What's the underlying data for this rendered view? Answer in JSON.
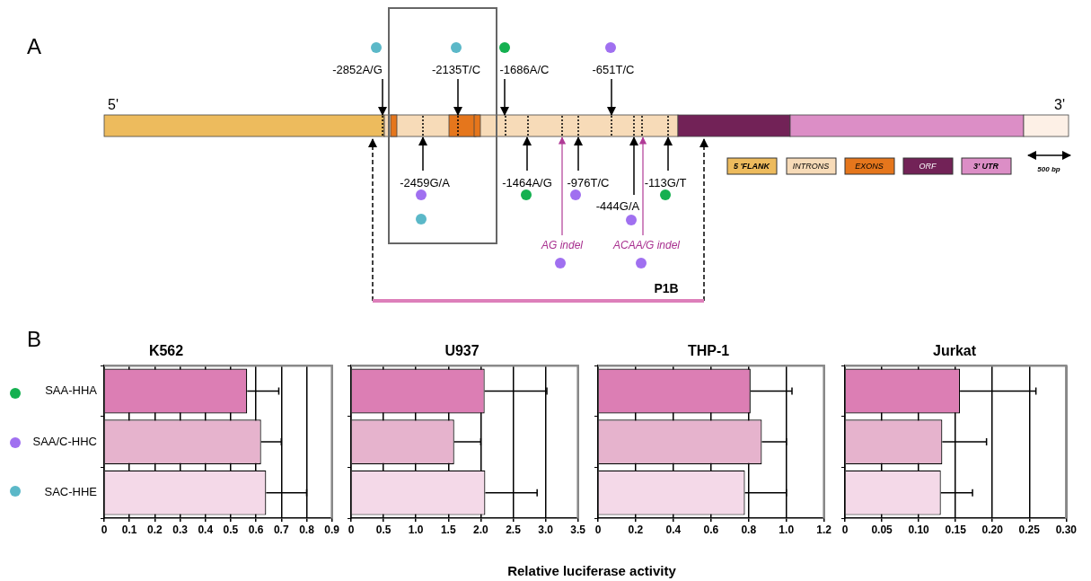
{
  "chart_data": [
    {
      "type": "other",
      "annotations": [
        "A",
        "5'",
        "3'",
        "-2852A/G",
        "-2135T/C",
        "-1686A/C",
        "-651T/C",
        "-2459G/A",
        "-1464A/G",
        "-976T/C",
        "-444G/A",
        "-113G/T",
        "AG indel",
        "ACAA/G indel",
        "P1B",
        "5 'FLANK",
        "INTRONS",
        "EXONS",
        "ORF",
        "3' UTR",
        "500 bp"
      ]
    },
    {
      "type": "bar",
      "orientation": "horizontal",
      "title": "K562",
      "annotations": [
        "B"
      ],
      "categories": [
        "SAA-HHA",
        "SAA/C-HHC",
        "SAC-HHE"
      ],
      "values": [
        0.565,
        0.62,
        0.64
      ],
      "colors": [
        "#dc7eb4",
        "#e6b3cd",
        "#f4d9e8"
      ],
      "errors": [
        [
          0.565,
          0.69
        ],
        [
          0.62,
          0.7
        ],
        [
          0.64,
          0.8
        ]
      ],
      "xlim": [
        0,
        0.9
      ],
      "xticks": [
        0,
        0.1,
        0.2,
        0.3,
        0.4,
        0.5,
        0.6,
        0.7,
        0.8,
        0.9
      ],
      "grid": "x"
    },
    {
      "type": "bar",
      "orientation": "horizontal",
      "title": "U937",
      "xlabel": "Relative luciferase activity",
      "categories": [
        null,
        null,
        null
      ],
      "values": [
        2.06,
        1.59,
        2.07
      ],
      "colors": [
        "#dc7eb4",
        "#e6b3cd",
        "#f4d9e8"
      ],
      "errors": [
        [
          2.06,
          3.02
        ],
        [
          1.59,
          2.0
        ],
        [
          2.07,
          2.87
        ]
      ],
      "xlim": [
        0,
        3.5
      ],
      "xticks": [
        0,
        0.5,
        {
          "value": 1,
          "label": "1.0"
        },
        1.5,
        {
          "value": 2,
          "label": "2.0"
        },
        2.5,
        {
          "value": 3,
          "label": "3.0"
        },
        3.5
      ],
      "grid": "x",
      "tick_labels": "x"
    },
    {
      "type": "bar",
      "orientation": "horizontal",
      "title": "THP-1",
      "categories": [
        null,
        null,
        null
      ],
      "values": [
        0.81,
        0.87,
        0.78
      ],
      "colors": [
        "#dc7eb4",
        "#e6b3cd",
        "#f4d9e8"
      ],
      "errors": [
        [
          0.81,
          1.03
        ],
        [
          0.87,
          1.0
        ],
        [
          0.78,
          1.0
        ]
      ],
      "xlim": [
        0,
        1.2
      ],
      "xticks": [
        0,
        0.2,
        0.4,
        0.6,
        0.8,
        {
          "value": 1,
          "label": "1.0"
        },
        1.2
      ],
      "grid": "x",
      "tick_labels": "x"
    },
    {
      "type": "bar",
      "orientation": "horizontal",
      "title": "Jurkat",
      "categories": [
        null,
        null,
        null
      ],
      "values": [
        0.156,
        0.132,
        0.13
      ],
      "colors": [
        "#dc7eb4",
        "#e6b3cd",
        "#f4d9e8"
      ],
      "errors": [
        [
          0.156,
          0.259
        ],
        [
          0.132,
          0.192
        ],
        [
          0.13,
          0.173
        ]
      ],
      "xlim": [
        0,
        0.3
      ],
      "xticks": [
        0,
        0.05,
        {
          "value": 0.1,
          "label": "0.10"
        },
        0.15,
        {
          "value": 0.2,
          "label": "0.20"
        },
        0.25,
        {
          "value": 0.3,
          "label": "0.30"
        }
      ],
      "grid": "x",
      "tick_labels": "x"
    }
  ]
}
